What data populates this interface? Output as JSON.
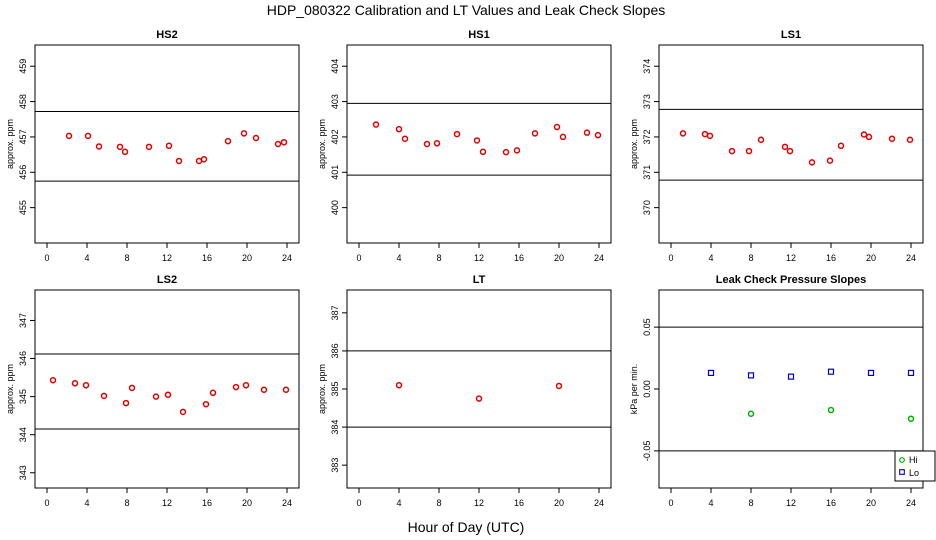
{
  "title": "HDP_080322  Calibration and LT Values and Leak Check Slopes",
  "xlabel": "Hour of Day (UTC)",
  "colors": {
    "cal": "#e00000",
    "high": "#00b000",
    "low": "#0000cc",
    "line": "#000000"
  },
  "chart_data": [
    {
      "type": "scatter",
      "title": "HS2",
      "ylabel": "approx. ppm",
      "xlim": [
        -1.2,
        25.2
      ],
      "ylim": [
        454,
        459.6
      ],
      "xticks": [
        0,
        4,
        8,
        12,
        16,
        20,
        24
      ],
      "yticks": [
        455,
        456,
        457,
        458,
        459
      ],
      "hlines": [
        455.75,
        457.72
      ],
      "series": [
        {
          "name": "HS2",
          "color": "#e00000",
          "x": [
            2.2,
            4.1,
            5.2,
            7.3,
            7.8,
            10.2,
            12.2,
            13.2,
            15.2,
            15.7,
            18.1,
            19.7,
            20.9,
            23.1,
            23.7
          ],
          "y": [
            457.03,
            457.03,
            456.73,
            456.72,
            456.58,
            456.72,
            456.75,
            456.32,
            456.32,
            456.37,
            456.88,
            457.1,
            456.97,
            456.8,
            456.85
          ]
        }
      ]
    },
    {
      "type": "scatter",
      "title": "HS1",
      "ylabel": "approx. ppm",
      "xlim": [
        -1.2,
        25.2
      ],
      "ylim": [
        399,
        404.6
      ],
      "xticks": [
        0,
        4,
        8,
        12,
        16,
        20,
        24
      ],
      "yticks": [
        400,
        401,
        402,
        403,
        404
      ],
      "hlines": [
        400.92,
        402.95
      ],
      "series": [
        {
          "name": "HS1",
          "color": "#e00000",
          "x": [
            1.7,
            4.0,
            4.6,
            6.8,
            7.8,
            9.8,
            11.8,
            12.4,
            14.7,
            15.8,
            17.6,
            19.8,
            20.4,
            22.8,
            23.9
          ],
          "y": [
            402.35,
            402.22,
            401.95,
            401.8,
            401.82,
            402.08,
            401.9,
            401.58,
            401.57,
            401.62,
            402.1,
            402.28,
            402.0,
            402.12,
            402.05
          ]
        }
      ]
    },
    {
      "type": "scatter",
      "title": "LS1",
      "ylabel": "approx. ppm",
      "xlim": [
        -1.2,
        25.2
      ],
      "ylim": [
        369,
        374.6
      ],
      "xticks": [
        0,
        4,
        8,
        12,
        16,
        20,
        24
      ],
      "yticks": [
        370,
        371,
        372,
        373,
        374
      ],
      "hlines": [
        370.78,
        372.78
      ],
      "series": [
        {
          "name": "LS1",
          "color": "#e00000",
          "x": [
            1.2,
            3.4,
            3.9,
            6.1,
            7.8,
            9.0,
            11.4,
            11.9,
            14.1,
            15.9,
            17.0,
            19.3,
            19.8,
            22.1,
            23.9
          ],
          "y": [
            372.1,
            372.08,
            372.03,
            371.6,
            371.6,
            371.92,
            371.72,
            371.6,
            371.28,
            371.33,
            371.75,
            372.07,
            372.0,
            371.95,
            371.92
          ]
        }
      ]
    },
    {
      "type": "scatter",
      "title": "LS2",
      "ylabel": "approx. ppm",
      "xlim": [
        -1.2,
        25.2
      ],
      "ylim": [
        342.6,
        347.8
      ],
      "xticks": [
        0,
        4,
        8,
        12,
        16,
        20,
        24
      ],
      "yticks": [
        343,
        344,
        345,
        346,
        347
      ],
      "hlines": [
        344.15,
        346.12
      ],
      "series": [
        {
          "name": "LS2",
          "color": "#e00000",
          "x": [
            0.6,
            2.8,
            3.9,
            5.7,
            7.9,
            8.5,
            10.9,
            12.1,
            13.6,
            15.9,
            16.6,
            18.9,
            19.9,
            21.7,
            23.9
          ],
          "y": [
            345.43,
            345.35,
            345.3,
            345.02,
            344.83,
            345.23,
            345.0,
            345.05,
            344.6,
            344.8,
            345.1,
            345.25,
            345.3,
            345.18,
            345.18
          ]
        }
      ]
    },
    {
      "type": "scatter",
      "title": "LT",
      "ylabel": "approx. ppm",
      "xlim": [
        -1.2,
        25.2
      ],
      "ylim": [
        382.4,
        387.6
      ],
      "xticks": [
        0,
        4,
        8,
        12,
        16,
        20,
        24
      ],
      "yticks": [
        383,
        384,
        385,
        386,
        387
      ],
      "hlines": [
        384.0,
        386.0
      ],
      "series": [
        {
          "name": "LT",
          "color": "#e00000",
          "x": [
            4.0,
            12.0,
            20.0
          ],
          "y": [
            385.1,
            384.75,
            385.08
          ]
        }
      ]
    },
    {
      "type": "scatter",
      "title": "Leak Check Pressure Slopes",
      "ylabel": "kPa per min.",
      "xlim": [
        -1.2,
        25.2
      ],
      "ylim": [
        -0.08,
        0.08
      ],
      "xticks": [
        0,
        4,
        8,
        12,
        16,
        20,
        24
      ],
      "yticks": [
        -0.05,
        0.0,
        0.05
      ],
      "ytick_labels": [
        "-0.05",
        "0.00",
        "0.05"
      ],
      "hlines": [
        -0.05,
        0.05
      ],
      "series": [
        {
          "name": "High",
          "color": "#00b000",
          "x": [
            8,
            16,
            24
          ],
          "y": [
            -0.02,
            -0.017,
            -0.024
          ]
        },
        {
          "name": "Low",
          "color": "#0000cc",
          "x": [
            4,
            8,
            12,
            16,
            20,
            24
          ],
          "y": [
            0.013,
            0.011,
            0.01,
            0.014,
            0.013,
            0.013
          ]
        }
      ],
      "legend": {
        "position": "bottom-right",
        "labels": [
          "Hi",
          "Lo"
        ]
      }
    }
  ]
}
